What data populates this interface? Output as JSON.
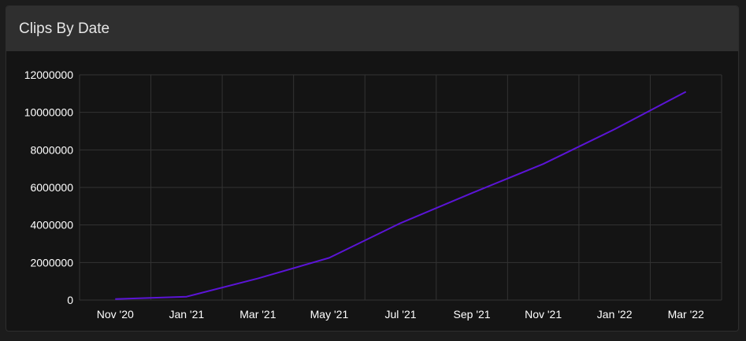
{
  "card": {
    "title": "Clips By Date"
  },
  "colors": {
    "line": "#5b14d6",
    "grid": "#333333",
    "card_bg": "#141414",
    "header_bg": "#2f2f2f"
  },
  "chart_data": {
    "type": "line",
    "title": "Clips By Date",
    "xlabel": "",
    "ylabel": "",
    "x_ticks": [
      "Nov '20",
      "Jan '21",
      "Mar '21",
      "May '21",
      "Jul '21",
      "Sep '21",
      "Nov '21",
      "Jan '22",
      "Mar '22"
    ],
    "y_ticks": [
      "0",
      "2000000",
      "4000000",
      "6000000",
      "8000000",
      "10000000",
      "12000000"
    ],
    "ylim": [
      0,
      12000000
    ],
    "grid": true,
    "legend": "none",
    "series": [
      {
        "x": [
          "Nov '20",
          "Jan '21",
          "Mar '21",
          "May '21",
          "Jul '21",
          "Sep '21",
          "Nov '21",
          "Jan '22",
          "Mar '22"
        ],
        "values": [
          50000,
          180000,
          1150000,
          2250000,
          4100000,
          5700000,
          7250000,
          9100000,
          11100000
        ]
      }
    ]
  }
}
